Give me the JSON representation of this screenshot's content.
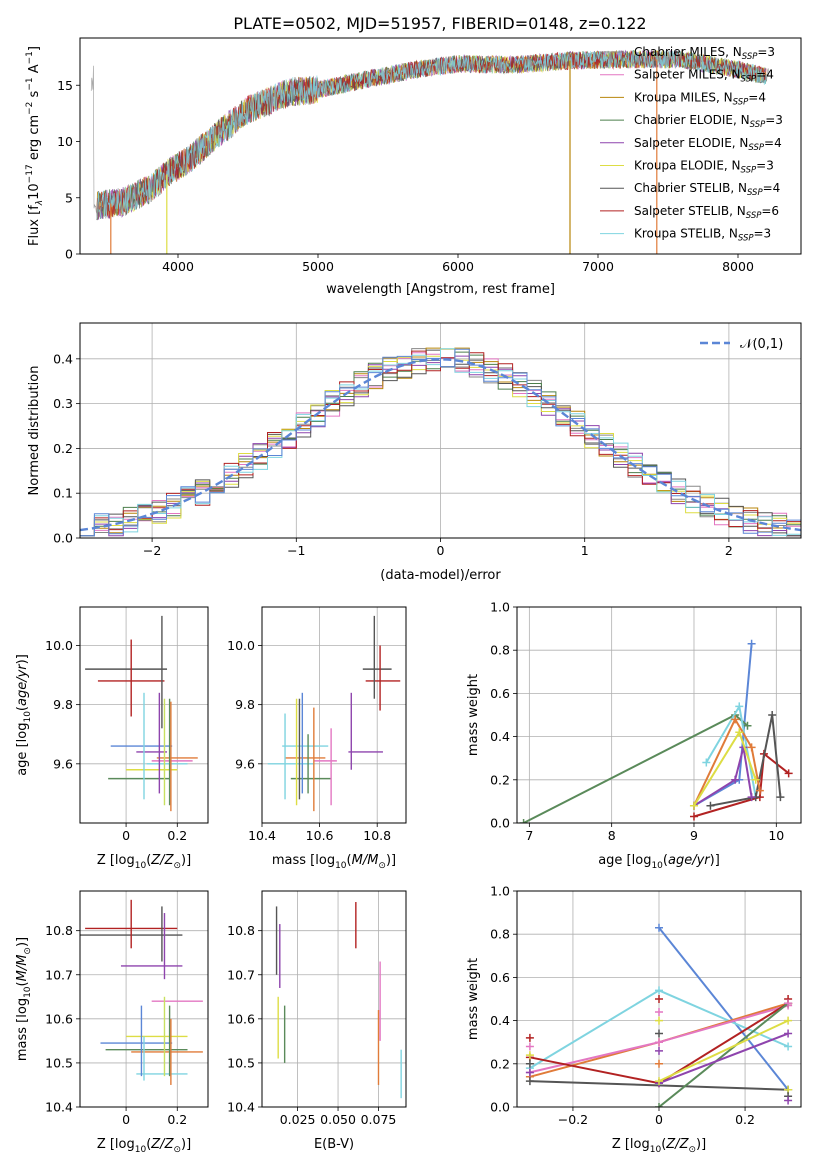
{
  "title": "PLATE=0502, MJD=51957, FIBERID=0148, z=0.122",
  "colors": {
    "Chabrier MILES": "#888888",
    "Salpeter MILES": "#e377c2",
    "Kroupa MILES": "#b8860b",
    "Chabrier ELODIE": "#4c7f4c",
    "Salpeter ELODIE": "#8e44ad",
    "Kroupa ELODIE": "#dddd44",
    "Chabrier STELIB": "#555555",
    "Salpeter STELIB": "#b22222",
    "Kroupa STELIB": "#7fd4e0",
    "blue": "#5b86d6",
    "orange": "#e07b39",
    "green": "#5a8a5a",
    "lime": "#c8e060"
  },
  "chart_data": [
    {
      "id": "spectrum",
      "type": "line",
      "xlabel": "wavelength [Angstrom, rest frame]",
      "ylabel_parts": [
        "Flux [f",
        "λ",
        "10",
        "−17",
        " erg cm",
        "−2",
        " s",
        "−1",
        " A",
        "−1",
        "]"
      ],
      "xlim": [
        3300,
        8450
      ],
      "ylim": [
        0,
        19.2
      ],
      "xticks": [
        4000,
        5000,
        6000,
        7000,
        8000
      ],
      "yticks": [
        0,
        5,
        10,
        15
      ],
      "legend": [
        {
          "name": "Chabrier MILES, N",
          "sub": "SSP",
          "tail": "=3"
        },
        {
          "name": "Salpeter MILES, N",
          "sub": "SSP",
          "tail": "=4"
        },
        {
          "name": "Kroupa MILES, N",
          "sub": "SSP",
          "tail": "=4"
        },
        {
          "name": "Chabrier ELODIE, N",
          "sub": "SSP",
          "tail": "=3"
        },
        {
          "name": "Salpeter ELODIE, N",
          "sub": "SSP",
          "tail": "=4"
        },
        {
          "name": "Kroupa ELODIE, N",
          "sub": "SSP",
          "tail": "=3"
        },
        {
          "name": "Chabrier STELIB, N",
          "sub": "SSP",
          "tail": "=4"
        },
        {
          "name": "Salpeter STELIB, N",
          "sub": "SSP",
          "tail": "=6"
        },
        {
          "name": "Kroupa STELIB, N",
          "sub": "SSP",
          "tail": "=3"
        }
      ],
      "legend_colors": [
        "Chabrier MILES",
        "Salpeter MILES",
        "Kroupa MILES",
        "Chabrier ELODIE",
        "Salpeter ELODIE",
        "Kroupa ELODIE",
        "Chabrier STELIB",
        "Salpeter STELIB",
        "Kroupa STELIB"
      ],
      "continuum": [
        [
          3400,
          4.3
        ],
        [
          3600,
          4.6
        ],
        [
          3800,
          5.8
        ],
        [
          3950,
          7.4
        ],
        [
          4100,
          8.6
        ],
        [
          4300,
          10.8
        ],
        [
          4500,
          12.8
        ],
        [
          4800,
          14.4
        ],
        [
          5000,
          14.6
        ],
        [
          5300,
          15.4
        ],
        [
          5700,
          16.4
        ],
        [
          6000,
          16.9
        ],
        [
          6400,
          16.8
        ],
        [
          6800,
          17.2
        ],
        [
          7200,
          17.3
        ],
        [
          7600,
          17.3
        ],
        [
          8000,
          16.4
        ],
        [
          8200,
          15.8
        ]
      ],
      "spikes_down": [
        {
          "x": 3520,
          "y": 0
        },
        {
          "x": 3920,
          "y": 0
        },
        {
          "x": 6800,
          "y": 0
        },
        {
          "x": 7420,
          "y": 0
        }
      ]
    },
    {
      "id": "residuals",
      "type": "step",
      "xlabel": "(data-model)/error",
      "ylabel": "Normed distribution",
      "xlim": [
        -2.5,
        2.5
      ],
      "ylim": [
        0,
        0.48
      ],
      "xticks": [
        -2,
        -1,
        0,
        1,
        2
      ],
      "yticks": [
        0.0,
        0.1,
        0.2,
        0.3,
        0.4
      ],
      "legend": "𝒩(0,1)",
      "bin_width": 0.1
    },
    {
      "id": "age-vs-Z",
      "type": "errorbar",
      "xlabel": "Z [log10(Z/Z⊙)]",
      "ylabel": "age  [log10(age/yr)]",
      "xlim": [
        -0.18,
        0.32
      ],
      "ylim": [
        9.4,
        10.13
      ],
      "xticks": [
        0.0,
        0.2
      ],
      "yticks": [
        9.6,
        9.8,
        10.0
      ],
      "points": [
        {
          "c": "Chabrier STELIB",
          "x": 0.0,
          "xe": 0.16,
          "y": 9.92,
          "ye": 0.0,
          "v": [
            9.92,
            9.92
          ]
        },
        {
          "c": "Salpeter STELIB",
          "x": 0.02,
          "xe": 0.13,
          "y": 9.88,
          "ye": 0.0,
          "v": [
            9.76,
            10.02
          ]
        },
        {
          "c": "Chabrier STELIB",
          "x": 0.14,
          "xe": 0.0,
          "y": 9.92,
          "ye": 0.0,
          "v": [
            9.72,
            10.1
          ]
        },
        {
          "c": "blue",
          "x": 0.06,
          "xe": 0.12,
          "y": 9.66,
          "ye": 0.0,
          "v": [
            9.66,
            9.66
          ]
        },
        {
          "c": "Salpeter ELODIE",
          "x": 0.1,
          "xe": 0.06,
          "y": 9.64,
          "ye": 0.0,
          "v": [
            9.64,
            9.64
          ]
        },
        {
          "c": "orange",
          "x": 0.2,
          "xe": 0.08,
          "y": 9.62,
          "ye": 0.0,
          "v": [
            9.62,
            9.62
          ]
        },
        {
          "c": "Salpeter MILES",
          "x": 0.18,
          "xe": 0.08,
          "y": 9.61,
          "ye": 0.0,
          "v": [
            9.61,
            9.61
          ]
        },
        {
          "c": "Kroupa STELIB",
          "x": 0.16,
          "xe": 0.08,
          "y": 9.6,
          "ye": 0.0,
          "v": [
            9.6,
            9.6
          ]
        },
        {
          "c": "Kroupa ELODIE",
          "x": 0.1,
          "xe": 0.1,
          "y": 9.58,
          "ye": 0.0,
          "v": [
            9.58,
            9.58
          ]
        },
        {
          "c": "green",
          "x": 0.05,
          "xe": 0.12,
          "y": 9.55,
          "ye": 0.0,
          "v": [
            9.55,
            9.55
          ]
        }
      ],
      "vlines": [
        {
          "c": "Kroupa STELIB",
          "x": 0.07,
          "y0": 9.48,
          "y1": 9.84
        },
        {
          "c": "Salpeter ELODIE",
          "x": 0.13,
          "y0": 9.5,
          "y1": 9.84
        },
        {
          "c": "lime",
          "x": 0.15,
          "y0": 9.46,
          "y1": 9.82
        },
        {
          "c": "green",
          "x": 0.17,
          "y0": 9.46,
          "y1": 9.82
        },
        {
          "c": "orange",
          "x": 0.175,
          "y0": 9.44,
          "y1": 9.81
        },
        {
          "c": "Chabrier STELIB",
          "x": 0.14,
          "y0": 9.72,
          "y1": 10.1
        },
        {
          "c": "Salpeter STELIB",
          "x": 0.02,
          "y0": 9.76,
          "y1": 10.02
        }
      ]
    },
    {
      "id": "age-vs-mass",
      "type": "errorbar",
      "xlabel": "mass [log10(M/M⊙)]",
      "xlim": [
        10.4,
        10.9
      ],
      "ylim": [
        9.4,
        10.13
      ],
      "xticks": [
        10.4,
        10.6,
        10.8
      ],
      "yticks": [
        9.6,
        9.8,
        10.0
      ],
      "points": [
        {
          "c": "Chabrier STELIB",
          "x": 10.8,
          "xe": 0.05,
          "y": 9.92
        },
        {
          "c": "Salpeter STELIB",
          "x": 10.82,
          "xe": 0.06,
          "y": 9.88
        },
        {
          "c": "Kroupa STELIB",
          "x": 10.55,
          "xe": 0.08,
          "y": 9.66
        },
        {
          "c": "Salpeter ELODIE",
          "x": 10.76,
          "xe": 0.06,
          "y": 9.64
        },
        {
          "c": "orange",
          "x": 10.55,
          "xe": 0.07,
          "y": 9.62
        },
        {
          "c": "Salpeter MILES",
          "x": 10.62,
          "xe": 0.04,
          "y": 9.61
        },
        {
          "c": "Kroupa STELIB",
          "x": 10.5,
          "xe": 0.08,
          "y": 9.6
        },
        {
          "c": "green",
          "x": 10.57,
          "xe": 0.07,
          "y": 9.55
        }
      ],
      "vlines": [
        {
          "c": "Chabrier STELIB",
          "x": 10.79,
          "y0": 9.82,
          "y1": 10.1
        },
        {
          "c": "Salpeter STELIB",
          "x": 10.81,
          "y0": 9.78,
          "y1": 10.0
        },
        {
          "c": "Salpeter ELODIE",
          "x": 10.71,
          "y0": 9.58,
          "y1": 9.84
        },
        {
          "c": "blue",
          "x": 10.54,
          "y0": 9.5,
          "y1": 9.84
        },
        {
          "c": "Kroupa STELIB",
          "x": 10.48,
          "y0": 9.48,
          "y1": 9.77
        },
        {
          "c": "Kroupa ELODIE",
          "x": 10.52,
          "y0": 9.46,
          "y1": 9.82
        },
        {
          "c": "Chabrier STELIB",
          "x": 10.53,
          "y0": 9.48,
          "y1": 9.82
        },
        {
          "c": "orange",
          "x": 10.58,
          "y0": 9.44,
          "y1": 9.79
        },
        {
          "c": "Salpeter MILES",
          "x": 10.64,
          "y0": 9.46,
          "y1": 9.72
        },
        {
          "c": "green",
          "x": 10.56,
          "y0": 9.5,
          "y1": 9.7
        }
      ]
    },
    {
      "id": "weight-vs-age",
      "type": "line",
      "xlabel": "age  [log10(age/yr)]",
      "ylabel": "mass weight",
      "xlim": [
        6.85,
        10.3
      ],
      "ylim": [
        0,
        1.0
      ],
      "xticks": [
        7,
        8,
        9,
        10
      ],
      "yticks": [
        0.0,
        0.2,
        0.4,
        0.6,
        0.8,
        1.0
      ],
      "series": [
        {
          "c": "blue",
          "pts": [
            [
              9.0,
              0.08
            ],
            [
              9.55,
              0.2
            ],
            [
              9.7,
              0.83
            ]
          ]
        },
        {
          "c": "green",
          "pts": [
            [
              6.93,
              0.0
            ],
            [
              9.5,
              0.5
            ],
            [
              9.65,
              0.45
            ]
          ]
        },
        {
          "c": "Kroupa STELIB",
          "pts": [
            [
              9.15,
              0.28
            ],
            [
              9.55,
              0.54
            ],
            [
              9.75,
              0.12
            ]
          ]
        },
        {
          "c": "Salpeter STELIB",
          "pts": [
            [
              9.0,
              0.03
            ],
            [
              9.8,
              0.12
            ],
            [
              9.85,
              0.32
            ],
            [
              10.15,
              0.23
            ]
          ]
        },
        {
          "c": "Chabrier STELIB",
          "pts": [
            [
              9.2,
              0.08
            ],
            [
              9.75,
              0.12
            ],
            [
              9.95,
              0.5
            ],
            [
              10.05,
              0.12
            ]
          ]
        },
        {
          "c": "orange",
          "pts": [
            [
              9.0,
              0.08
            ],
            [
              9.5,
              0.48
            ],
            [
              9.7,
              0.35
            ],
            [
              9.8,
              0.15
            ]
          ]
        },
        {
          "c": "Salpeter ELODIE",
          "pts": [
            [
              9.0,
              0.08
            ],
            [
              9.5,
              0.2
            ],
            [
              9.6,
              0.35
            ],
            [
              9.7,
              0.12
            ]
          ]
        },
        {
          "c": "Kroupa ELODIE",
          "pts": [
            [
              9.0,
              0.08
            ],
            [
              9.55,
              0.42
            ],
            [
              9.75,
              0.2
            ]
          ]
        }
      ]
    },
    {
      "id": "mass-vs-Z",
      "type": "errorbar",
      "xlabel": "Z [log10(Z/Z⊙)]",
      "ylabel": "mass [log10(M/M⊙)]",
      "xlim": [
        -0.18,
        0.32
      ],
      "ylim": [
        10.4,
        10.89
      ],
      "xticks": [
        0.0,
        0.2
      ],
      "yticks": [
        10.4,
        10.5,
        10.6,
        10.7,
        10.8
      ],
      "points": [
        {
          "c": "Salpeter STELIB",
          "x": 0.02,
          "xe": 0.18,
          "y": 10.805
        },
        {
          "c": "Chabrier STELIB",
          "x": 0.02,
          "xe": 0.2,
          "y": 10.79
        },
        {
          "c": "Salpeter ELODIE",
          "x": 0.1,
          "xe": 0.12,
          "y": 10.72
        },
        {
          "c": "Salpeter MILES",
          "x": 0.2,
          "xe": 0.1,
          "y": 10.64
        },
        {
          "c": "Kroupa ELODIE",
          "x": 0.12,
          "xe": 0.12,
          "y": 10.56
        },
        {
          "c": "blue",
          "x": 0.04,
          "xe": 0.14,
          "y": 10.545
        },
        {
          "c": "green",
          "x": 0.08,
          "xe": 0.16,
          "y": 10.53
        },
        {
          "c": "orange",
          "x": 0.16,
          "xe": 0.14,
          "y": 10.525
        },
        {
          "c": "Kroupa STELIB",
          "x": 0.14,
          "xe": 0.1,
          "y": 10.475
        }
      ],
      "vlines": [
        {
          "c": "Salpeter STELIB",
          "x": 0.02,
          "y0": 10.76,
          "y1": 10.87
        },
        {
          "c": "Chabrier STELIB",
          "x": 0.14,
          "y0": 10.73,
          "y1": 10.855
        },
        {
          "c": "Salpeter ELODIE",
          "x": 0.15,
          "y0": 10.69,
          "y1": 10.84
        },
        {
          "c": "blue",
          "x": 0.06,
          "y0": 10.47,
          "y1": 10.63
        },
        {
          "c": "Kroupa STELIB",
          "x": 0.07,
          "y0": 10.46,
          "y1": 10.56
        },
        {
          "c": "lime",
          "x": 0.15,
          "y0": 10.47,
          "y1": 10.65
        },
        {
          "c": "green",
          "x": 0.17,
          "y0": 10.47,
          "y1": 10.63
        },
        {
          "c": "orange",
          "x": 0.175,
          "y0": 10.45,
          "y1": 10.6
        }
      ]
    },
    {
      "id": "mass-vs-ebv",
      "type": "errorbar",
      "xlabel": "E(B-V)",
      "xlim": [
        0.003,
        0.092
      ],
      "ylim": [
        10.4,
        10.89
      ],
      "xticks": [
        0.025,
        0.05,
        0.075
      ],
      "xtick_labels": [
        "0.025",
        "0.050",
        "0.075"
      ],
      "yticks": [
        10.4,
        10.5,
        10.6,
        10.7,
        10.8
      ],
      "vlines": [
        {
          "c": "Chabrier STELIB",
          "x": 0.012,
          "y0": 10.7,
          "y1": 10.855
        },
        {
          "c": "Salpeter ELODIE",
          "x": 0.014,
          "y0": 10.67,
          "y1": 10.815
        },
        {
          "c": "Kroupa ELODIE",
          "x": 0.013,
          "y0": 10.51,
          "y1": 10.65
        },
        {
          "c": "green",
          "x": 0.017,
          "y0": 10.5,
          "y1": 10.63
        },
        {
          "c": "Salpeter STELIB",
          "x": 0.061,
          "y0": 10.76,
          "y1": 10.865
        },
        {
          "c": "Salpeter MILES",
          "x": 0.076,
          "y0": 10.55,
          "y1": 10.73
        },
        {
          "c": "orange",
          "x": 0.075,
          "y0": 10.45,
          "y1": 10.62
        },
        {
          "c": "Kroupa STELIB",
          "x": 0.089,
          "y0": 10.42,
          "y1": 10.53
        }
      ]
    },
    {
      "id": "weight-vs-Z",
      "type": "line",
      "xlabel": "Z [log10(Z/Z⊙)]",
      "ylabel": "mass weight",
      "xlim": [
        -0.33,
        0.33
      ],
      "ylim": [
        0,
        1.0
      ],
      "xticks": [
        -0.2,
        0.0,
        0.2
      ],
      "yticks": [
        0.0,
        0.2,
        0.4,
        0.6,
        0.8,
        1.0
      ],
      "series": [
        {
          "c": "blue",
          "pts": [
            [
              0.0,
              0.83
            ],
            [
              0.3,
              0.08
            ]
          ]
        },
        {
          "c": "Kroupa STELIB",
          "pts": [
            [
              -0.3,
              0.18
            ],
            [
              0.0,
              0.54
            ],
            [
              0.3,
              0.28
            ]
          ]
        },
        {
          "c": "orange",
          "pts": [
            [
              -0.3,
              0.14
            ],
            [
              0.0,
              0.3
            ],
            [
              0.3,
              0.48
            ]
          ]
        },
        {
          "c": "Salpeter MILES",
          "pts": [
            [
              -0.3,
              0.16
            ],
            [
              0.0,
              0.3
            ],
            [
              0.3,
              0.47
            ]
          ]
        },
        {
          "c": "Salpeter STELIB",
          "pts": [
            [
              -0.3,
              0.23
            ],
            [
              0.0,
              0.11
            ],
            [
              0.3,
              0.48
            ]
          ]
        },
        {
          "c": "Chabrier STELIB",
          "pts": [
            [
              -0.3,
              0.12
            ],
            [
              0.3,
              0.08
            ]
          ]
        },
        {
          "c": "green",
          "pts": [
            [
              0.0,
              0.0
            ],
            [
              0.3,
              0.48
            ]
          ]
        },
        {
          "c": "Salpeter ELODIE",
          "pts": [
            [
              0.0,
              0.11
            ],
            [
              0.3,
              0.34
            ]
          ]
        },
        {
          "c": "Kroupa ELODIE",
          "pts": [
            [
              0.0,
              0.12
            ],
            [
              0.3,
              0.4
            ]
          ]
        }
      ],
      "ticks_stack": [
        {
          "x": -0.3,
          "ys": [
            0.32,
            0.28,
            0.24,
            0.2,
            0.16
          ]
        },
        {
          "x": 0.0,
          "ys": [
            0.5,
            0.44,
            0.4,
            0.34,
            0.26,
            0.2
          ]
        },
        {
          "x": 0.3,
          "ys": [
            0.5,
            0.48,
            0.08,
            0.05,
            0.03
          ]
        }
      ]
    }
  ]
}
